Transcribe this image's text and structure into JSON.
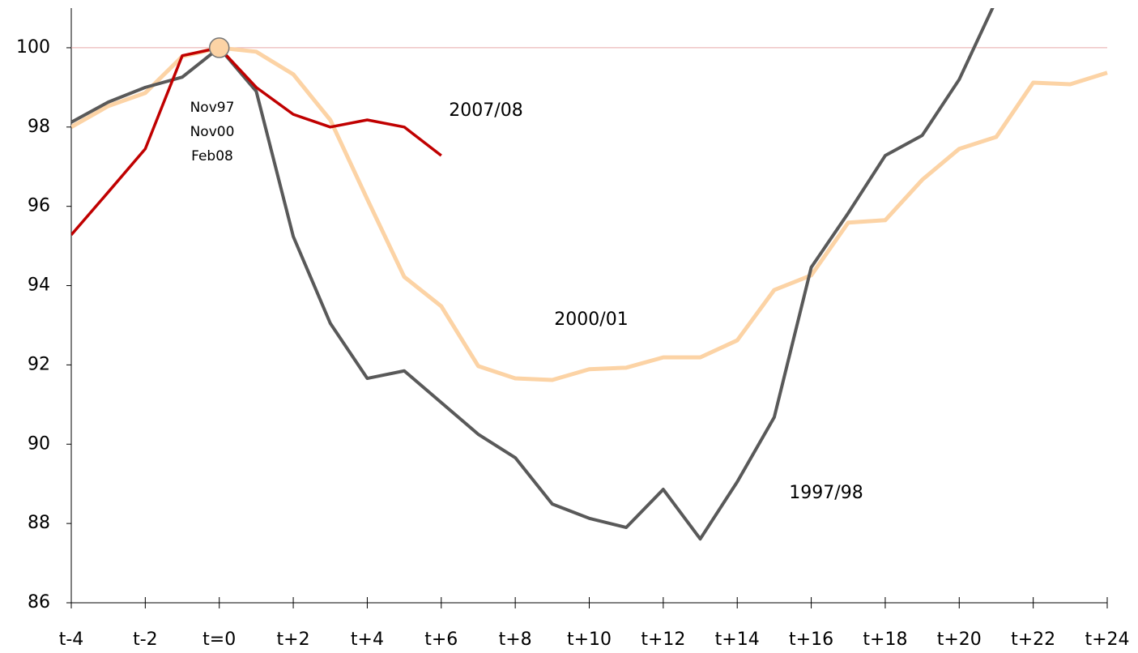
{
  "chart_data": {
    "type": "line",
    "categories": [
      "t-4",
      null,
      "t-2",
      null,
      "t=0",
      null,
      "t+2",
      null,
      "t+4",
      null,
      "t+6",
      null,
      "t+8",
      null,
      "t+10",
      null,
      "t+12",
      null,
      "t+14",
      null,
      "t+16",
      null,
      "t+18",
      null,
      "t+20",
      null,
      "t+22",
      null,
      "t+24"
    ],
    "series": [
      {
        "name": "1997/98",
        "color": "#595959",
        "values": [
          98.12,
          98.63,
          99.0,
          99.26,
          100,
          98.9,
          95.24,
          93.05,
          91.66,
          91.85,
          91.05,
          90.25,
          89.66,
          88.49,
          88.13,
          87.9,
          88.86,
          87.61,
          89.05,
          90.68,
          94.46,
          95.83,
          97.28,
          97.79,
          99.2,
          101.2,
          null,
          null,
          null
        ]
      },
      {
        "name": "2000/01",
        "color": "#fcd3a5",
        "values": [
          98.0,
          98.53,
          98.86,
          99.78,
          100,
          99.9,
          99.33,
          98.18,
          96.18,
          94.22,
          93.48,
          91.97,
          91.66,
          91.62,
          91.89,
          91.93,
          92.19,
          92.19,
          92.62,
          93.89,
          94.26,
          95.59,
          95.65,
          96.67,
          97.45,
          97.75,
          99.12,
          99.08,
          99.37
        ]
      },
      {
        "name": "2007/08",
        "color": "#c00000",
        "values": [
          95.28,
          96.36,
          97.45,
          99.8,
          100,
          99.0,
          98.32,
          98.0,
          98.18,
          98.0,
          97.28,
          null,
          null,
          null,
          null,
          null,
          null,
          null,
          null,
          null,
          null,
          null,
          null,
          null,
          null,
          null,
          null,
          null,
          null
        ]
      }
    ],
    "annotations": [
      "Nov97",
      "Nov00",
      "Feb08"
    ],
    "ylim": [
      86,
      101
    ],
    "yticks": [
      86,
      88,
      90,
      92,
      94,
      96,
      98,
      100
    ],
    "reference_line": 100,
    "reference_color": "#e8a8a8",
    "marker_color": "#fcd3a5",
    "grid": false
  }
}
